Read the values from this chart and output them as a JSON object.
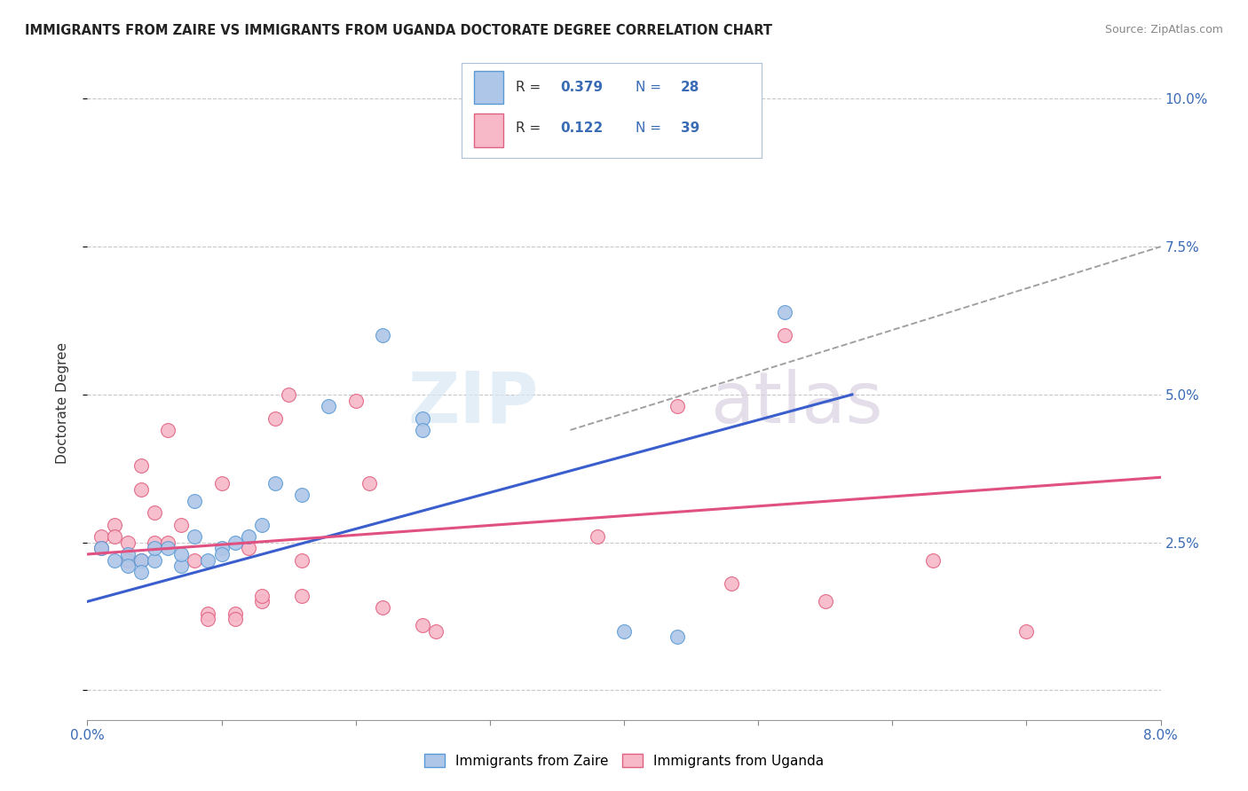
{
  "title": "IMMIGRANTS FROM ZAIRE VS IMMIGRANTS FROM UGANDA DOCTORATE DEGREE CORRELATION CHART",
  "source": "Source: ZipAtlas.com",
  "ylabel": "Doctorate Degree",
  "x_min": 0.0,
  "x_max": 0.08,
  "y_min": -0.005,
  "y_max": 0.102,
  "yticks": [
    0.0,
    0.025,
    0.05,
    0.075,
    0.1
  ],
  "ytick_labels": [
    "",
    "2.5%",
    "5.0%",
    "7.5%",
    "10.0%"
  ],
  "watermark_zip": "ZIP",
  "watermark_atlas": "atlas",
  "legend_r1_label": "R = ",
  "legend_r1_val": "0.379",
  "legend_n1_label": "N = ",
  "legend_n1_val": "28",
  "legend_r2_label": "R =  ",
  "legend_r2_val": "0.122",
  "legend_n2_label": "N = ",
  "legend_n2_val": "39",
  "color_zaire_fill": "#aec6e8",
  "color_zaire_edge": "#5b9bd5",
  "color_uganda_fill": "#f7b8c8",
  "color_uganda_edge": "#e06080",
  "color_zaire_line": "#3a5fcd",
  "color_uganda_line": "#e05080",
  "color_dashed": "#a0a0a0",
  "scatter_zaire_x": [
    0.001,
    0.002,
    0.003,
    0.003,
    0.004,
    0.004,
    0.005,
    0.005,
    0.006,
    0.007,
    0.007,
    0.008,
    0.008,
    0.009,
    0.01,
    0.01,
    0.011,
    0.012,
    0.013,
    0.014,
    0.016,
    0.018,
    0.022,
    0.025,
    0.025,
    0.04,
    0.044,
    0.052
  ],
  "scatter_zaire_y": [
    0.024,
    0.022,
    0.023,
    0.021,
    0.022,
    0.02,
    0.022,
    0.024,
    0.024,
    0.021,
    0.023,
    0.032,
    0.026,
    0.022,
    0.024,
    0.023,
    0.025,
    0.026,
    0.028,
    0.035,
    0.033,
    0.048,
    0.06,
    0.046,
    0.044,
    0.01,
    0.009,
    0.064
  ],
  "scatter_uganda_x": [
    0.001,
    0.001,
    0.002,
    0.002,
    0.003,
    0.003,
    0.004,
    0.004,
    0.004,
    0.005,
    0.005,
    0.006,
    0.006,
    0.007,
    0.008,
    0.009,
    0.009,
    0.01,
    0.011,
    0.011,
    0.012,
    0.013,
    0.013,
    0.014,
    0.015,
    0.016,
    0.016,
    0.02,
    0.021,
    0.022,
    0.025,
    0.026,
    0.038,
    0.044,
    0.048,
    0.052,
    0.055,
    0.063,
    0.07
  ],
  "scatter_uganda_y": [
    0.026,
    0.024,
    0.028,
    0.026,
    0.025,
    0.022,
    0.038,
    0.034,
    0.022,
    0.03,
    0.025,
    0.025,
    0.044,
    0.028,
    0.022,
    0.013,
    0.012,
    0.035,
    0.013,
    0.012,
    0.024,
    0.015,
    0.016,
    0.046,
    0.05,
    0.022,
    0.016,
    0.049,
    0.035,
    0.014,
    0.011,
    0.01,
    0.026,
    0.048,
    0.018,
    0.06,
    0.015,
    0.022,
    0.01
  ],
  "zaire_line_x": [
    0.0,
    0.057
  ],
  "zaire_line_y": [
    0.015,
    0.05
  ],
  "uganda_line_x": [
    0.0,
    0.08
  ],
  "uganda_line_y": [
    0.023,
    0.036
  ],
  "dashed_line_x": [
    0.036,
    0.08
  ],
  "dashed_line_y": [
    0.044,
    0.075
  ]
}
